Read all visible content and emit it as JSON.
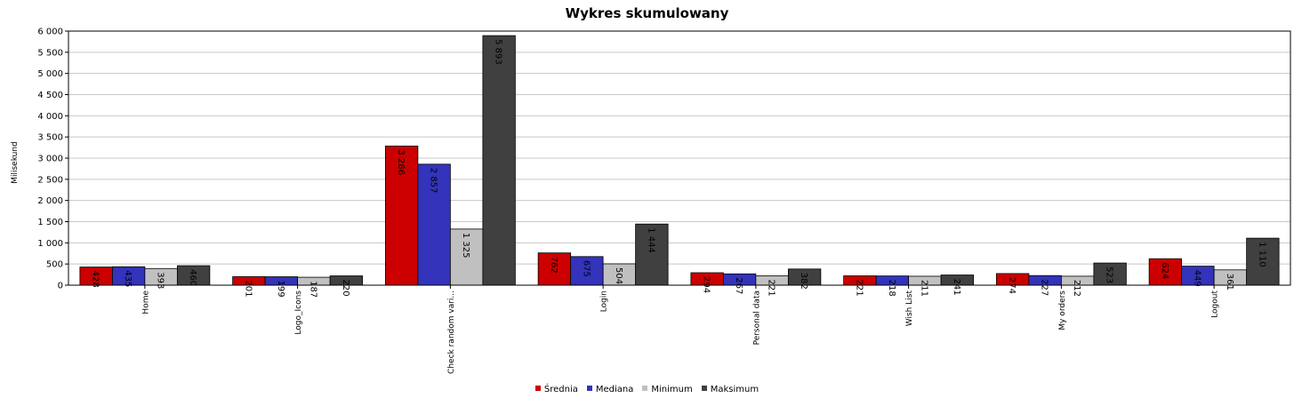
{
  "chart_data": {
    "type": "bar",
    "title": "Wykres skumulowany",
    "xlabel": "",
    "ylabel": "Milisekund",
    "ylim": [
      0,
      6000
    ],
    "yticks": [
      "0",
      "500",
      "1 000",
      "1 500",
      "2 000",
      "2 500",
      "3 000",
      "3 500",
      "4 000",
      "4 500",
      "5 000",
      "5 500",
      "6 000"
    ],
    "grid": true,
    "legend_position": "bottom",
    "categories": [
      "Home",
      "Logo_Icons",
      "Check random vari...",
      "Login",
      "Personal data",
      "Wish List",
      "My orders",
      "Logout"
    ],
    "series": [
      {
        "name": "Średnia",
        "color": "#cc0000",
        "values": [
          428,
          201,
          3286,
          762,
          294,
          221,
          274,
          624
        ],
        "labels": [
          "428",
          "201",
          "3 286",
          "762",
          "294",
          "221",
          "274",
          "624"
        ]
      },
      {
        "name": "Mediana",
        "color": "#3333bb",
        "values": [
          435,
          199,
          2857,
          675,
          267,
          218,
          227,
          449
        ],
        "labels": [
          "435",
          "199",
          "2 857",
          "675",
          "267",
          "218",
          "227",
          "449"
        ]
      },
      {
        "name": "Minimum",
        "color": "#c0c0c0",
        "values": [
          393,
          187,
          1325,
          504,
          221,
          211,
          212,
          361
        ],
        "labels": [
          "393",
          "187",
          "1 325",
          "504",
          "221",
          "211",
          "212",
          "361"
        ]
      },
      {
        "name": "Maksimum",
        "color": "#404040",
        "values": [
          460,
          220,
          5893,
          1444,
          382,
          241,
          523,
          1110
        ],
        "labels": [
          "460",
          "220",
          "5 893",
          "1 444",
          "382",
          "241",
          "523",
          "1 110"
        ]
      }
    ]
  }
}
